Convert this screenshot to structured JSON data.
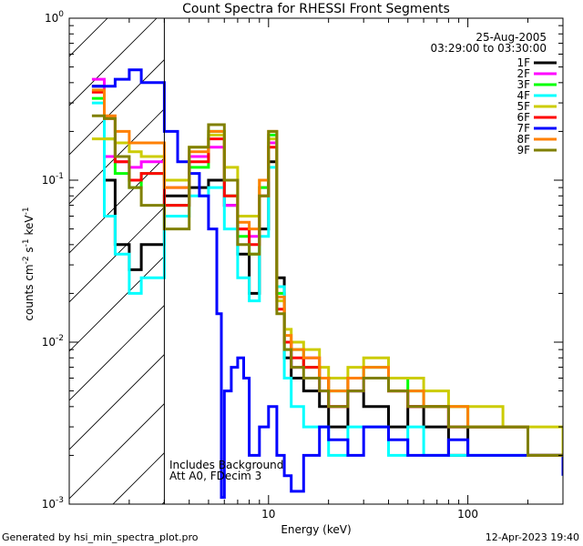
{
  "chart_data": {
    "type": "line",
    "title": "Count Spectra for RHESSI Front Segments",
    "xlabel": "Energy (keV)",
    "ylabel_main": "counts cm",
    "ylabel_exp1": "-2",
    "ylabel_mid": " s",
    "ylabel_exp2": "-1",
    "ylabel_end": " keV",
    "ylabel_exp3": "-1",
    "xscale": "log",
    "yscale": "log",
    "xlim": [
      1.0,
      300.0
    ],
    "ylim": [
      0.001,
      1.0
    ],
    "x_ticks": [
      {
        "value": 10,
        "label": "10"
      },
      {
        "value": 100,
        "label": "100"
      }
    ],
    "y_ticks": [
      {
        "value": 1,
        "base": "10",
        "exp": "0"
      },
      {
        "value": 0.1,
        "base": "10",
        "exp": "-1"
      },
      {
        "value": 0.01,
        "base": "10",
        "exp": "-2"
      },
      {
        "value": 0.001,
        "base": "10",
        "exp": "-3"
      }
    ],
    "shaded_region": {
      "x_from": 1.0,
      "x_to": 3.0,
      "style": "diagonal-hatch"
    },
    "annotations": {
      "date": "25-Aug-2005",
      "time_range": "03:29:00 to 03:30:00",
      "background_note": "Includes Background",
      "atten_note": "Att A0, FDecim 3"
    },
    "legend_position": "top-right",
    "series": [
      {
        "name": "1F",
        "color": "#000000",
        "x": [
          1.3,
          1.5,
          1.7,
          2.0,
          2.3,
          3.0,
          4.0,
          5.0,
          6.0,
          7.0,
          8.0,
          9.0,
          10.0,
          11.0,
          12.0,
          13.0,
          15.0,
          18.0,
          20.0,
          25.0,
          30.0,
          40.0,
          50.0,
          60.0,
          80.0,
          100.0,
          150.0,
          200.0,
          300.0
        ],
        "values": [
          0.38,
          0.1,
          0.04,
          0.028,
          0.04,
          0.08,
          0.09,
          0.1,
          0.07,
          0.035,
          0.02,
          0.05,
          0.13,
          0.025,
          0.008,
          0.006,
          0.005,
          0.004,
          0.003,
          0.005,
          0.004,
          0.003,
          0.004,
          0.003,
          0.002,
          0.003,
          0.003,
          0.002,
          0.002
        ]
      },
      {
        "name": "2F",
        "color": "#ff00ff",
        "x": [
          1.3,
          1.5,
          1.7,
          2.0,
          2.3,
          3.0,
          4.0,
          5.0,
          6.0,
          7.0,
          8.0,
          9.0,
          10.0,
          11.0,
          12.0,
          13.0,
          15.0,
          18.0,
          20.0,
          25.0,
          30.0,
          40.0,
          50.0,
          60.0,
          80.0,
          100.0,
          150.0,
          200.0,
          300.0
        ],
        "values": [
          0.42,
          0.14,
          0.13,
          0.12,
          0.13,
          0.09,
          0.14,
          0.16,
          0.07,
          0.05,
          0.045,
          0.09,
          0.17,
          0.02,
          0.01,
          0.007,
          0.008,
          0.005,
          0.004,
          0.005,
          0.006,
          0.005,
          0.004,
          0.004,
          0.003,
          0.003,
          0.003,
          0.002,
          0.002
        ]
      },
      {
        "name": "3F",
        "color": "#00ff00",
        "x": [
          1.3,
          1.5,
          1.7,
          2.0,
          2.3,
          3.0,
          4.0,
          5.0,
          6.0,
          7.0,
          8.0,
          9.0,
          10.0,
          11.0,
          12.0,
          13.0,
          15.0,
          18.0,
          20.0,
          25.0,
          30.0,
          40.0,
          50.0,
          60.0,
          80.0,
          100.0,
          150.0,
          200.0,
          300.0
        ],
        "values": [
          0.32,
          0.18,
          0.11,
          0.09,
          0.11,
          0.07,
          0.12,
          0.2,
          0.08,
          0.045,
          0.035,
          0.09,
          0.19,
          0.02,
          0.009,
          0.009,
          0.007,
          0.006,
          0.005,
          0.006,
          0.007,
          0.006,
          0.005,
          0.004,
          0.004,
          0.003,
          0.003,
          0.002,
          0.002
        ]
      },
      {
        "name": "4F",
        "color": "#00ffff",
        "x": [
          1.3,
          1.5,
          1.7,
          2.0,
          2.3,
          3.0,
          4.0,
          5.0,
          6.0,
          7.0,
          8.0,
          9.0,
          10.0,
          11.0,
          12.0,
          13.0,
          15.0,
          18.0,
          20.0,
          25.0,
          30.0,
          40.0,
          50.0,
          60.0,
          80.0,
          100.0,
          150.0,
          200.0,
          300.0
        ],
        "values": [
          0.3,
          0.06,
          0.035,
          0.02,
          0.025,
          0.06,
          0.08,
          0.09,
          0.05,
          0.025,
          0.018,
          0.045,
          0.12,
          0.022,
          0.006,
          0.004,
          0.003,
          0.003,
          0.002,
          0.003,
          0.003,
          0.002,
          0.003,
          0.002,
          0.002,
          0.002,
          0.002,
          0.002,
          0.0015
        ]
      },
      {
        "name": "5F",
        "color": "#cccc00",
        "x": [
          1.3,
          1.5,
          1.7,
          2.0,
          2.3,
          3.0,
          4.0,
          5.0,
          6.0,
          7.0,
          8.0,
          9.0,
          10.0,
          11.0,
          12.0,
          13.0,
          15.0,
          18.0,
          20.0,
          25.0,
          30.0,
          40.0,
          50.0,
          60.0,
          80.0,
          100.0,
          150.0,
          200.0,
          300.0
        ],
        "values": [
          0.18,
          0.18,
          0.17,
          0.15,
          0.14,
          0.1,
          0.16,
          0.19,
          0.12,
          0.06,
          0.06,
          0.1,
          0.18,
          0.018,
          0.012,
          0.01,
          0.009,
          0.007,
          0.006,
          0.007,
          0.008,
          0.006,
          0.006,
          0.005,
          0.004,
          0.004,
          0.003,
          0.003,
          0.002
        ]
      },
      {
        "name": "6F",
        "color": "#ff0000",
        "x": [
          1.3,
          1.5,
          1.7,
          2.0,
          2.3,
          3.0,
          4.0,
          5.0,
          6.0,
          7.0,
          8.0,
          9.0,
          10.0,
          11.0,
          12.0,
          13.0,
          15.0,
          18.0,
          20.0,
          25.0,
          30.0,
          40.0,
          50.0,
          60.0,
          80.0,
          100.0,
          150.0,
          200.0,
          300.0
        ],
        "values": [
          0.35,
          0.24,
          0.13,
          0.1,
          0.11,
          0.07,
          0.13,
          0.18,
          0.08,
          0.05,
          0.04,
          0.08,
          0.16,
          0.016,
          0.01,
          0.008,
          0.007,
          0.006,
          0.004,
          0.006,
          0.006,
          0.005,
          0.004,
          0.004,
          0.003,
          0.003,
          0.003,
          0.002,
          0.002
        ]
      },
      {
        "name": "7F",
        "color": "#0000ff",
        "x": [
          1.3,
          1.5,
          1.7,
          2.0,
          2.3,
          3.0,
          3.5,
          4.0,
          4.5,
          5.0,
          5.5,
          5.8,
          6.0,
          6.5,
          7.0,
          7.5,
          8.0,
          9.0,
          10.0,
          11.0,
          12.0,
          13.0,
          15.0,
          18.0,
          20.0,
          25.0,
          30.0,
          40.0,
          50.0,
          60.0,
          80.0,
          100.0,
          150.0,
          200.0,
          300.0
        ],
        "values": [
          0.38,
          0.38,
          0.42,
          0.48,
          0.4,
          0.2,
          0.13,
          0.11,
          0.08,
          0.05,
          0.015,
          0.0011,
          0.005,
          0.007,
          0.008,
          0.006,
          0.002,
          0.003,
          0.004,
          0.002,
          0.0015,
          0.0012,
          0.002,
          0.003,
          0.0025,
          0.002,
          0.003,
          0.0025,
          0.002,
          0.002,
          0.0025,
          0.002,
          0.002,
          0.002,
          0.0015
        ]
      },
      {
        "name": "8F",
        "color": "#ff8000",
        "x": [
          1.3,
          1.5,
          1.7,
          2.0,
          2.3,
          3.0,
          4.0,
          5.0,
          6.0,
          7.0,
          8.0,
          9.0,
          10.0,
          11.0,
          12.0,
          13.0,
          15.0,
          18.0,
          20.0,
          25.0,
          30.0,
          40.0,
          50.0,
          60.0,
          80.0,
          100.0,
          150.0,
          200.0,
          300.0
        ],
        "values": [
          0.36,
          0.25,
          0.2,
          0.17,
          0.17,
          0.09,
          0.15,
          0.2,
          0.1,
          0.055,
          0.05,
          0.1,
          0.2,
          0.019,
          0.011,
          0.009,
          0.008,
          0.006,
          0.005,
          0.006,
          0.007,
          0.005,
          0.005,
          0.004,
          0.004,
          0.003,
          0.003,
          0.002,
          0.002
        ]
      },
      {
        "name": "9F",
        "color": "#808000",
        "x": [
          1.3,
          1.5,
          1.7,
          2.0,
          2.3,
          3.0,
          4.0,
          5.0,
          6.0,
          7.0,
          8.0,
          9.0,
          10.0,
          11.0,
          12.0,
          13.0,
          15.0,
          18.0,
          20.0,
          25.0,
          30.0,
          40.0,
          50.0,
          60.0,
          80.0,
          100.0,
          150.0,
          200.0,
          300.0
        ],
        "values": [
          0.25,
          0.24,
          0.14,
          0.09,
          0.07,
          0.05,
          0.16,
          0.22,
          0.1,
          0.04,
          0.035,
          0.08,
          0.2,
          0.015,
          0.009,
          0.007,
          0.006,
          0.005,
          0.004,
          0.005,
          0.006,
          0.005,
          0.004,
          0.004,
          0.003,
          0.003,
          0.003,
          0.002,
          0.002
        ]
      }
    ]
  },
  "footer": {
    "generated_by": "Generated by hsi_min_spectra_plot.pro",
    "timestamp": "12-Apr-2023 19:40"
  }
}
